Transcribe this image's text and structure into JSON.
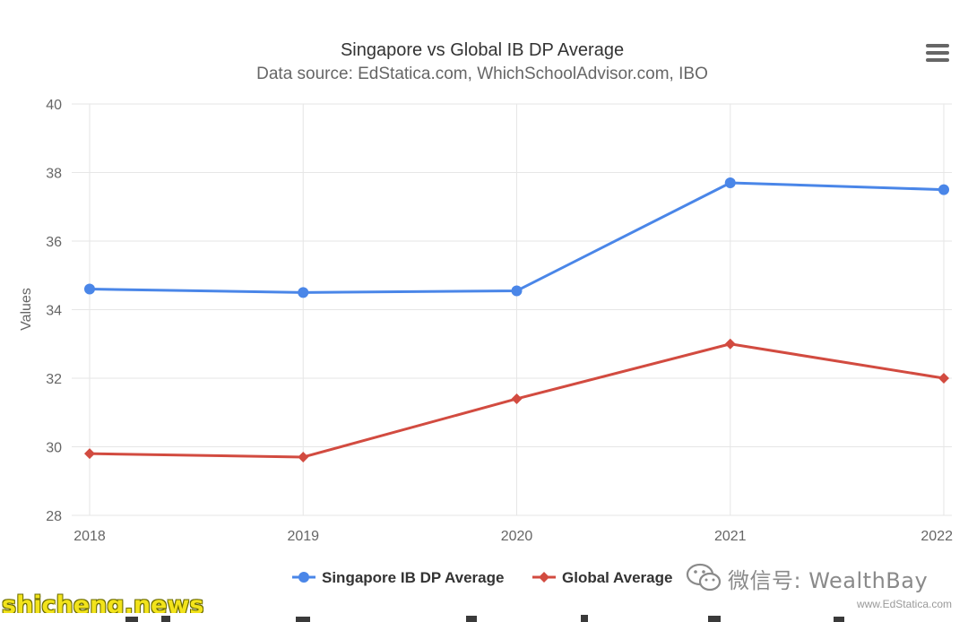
{
  "chart_data": {
    "type": "line",
    "title": "Singapore vs Global IB DP Average",
    "subtitle": "Data source: EdStatica.com, WhichSchoolAdvisor.com, IBO",
    "ylabel": "Values",
    "xlabel": "",
    "categories": [
      "2018",
      "2019",
      "2020",
      "2021",
      "2022"
    ],
    "y_ticks": [
      "28",
      "30",
      "32",
      "34",
      "36",
      "38",
      "40"
    ],
    "ylim": [
      28,
      40
    ],
    "grid": true,
    "legend_position": "bottom",
    "series": [
      {
        "name": "Singapore IB DP Average",
        "values": [
          34.6,
          34.5,
          34.55,
          37.7,
          37.5
        ],
        "color": "#4a86e8",
        "marker": "circle"
      },
      {
        "name": "Global Average",
        "values": [
          29.8,
          29.7,
          31.4,
          33.0,
          32.0
        ],
        "color": "#d24b40",
        "marker": "diamond"
      }
    ]
  },
  "credits": "www.EdStatica.com",
  "menu_icon": "hamburger-menu-icon",
  "watermarks": {
    "wechat": "微信号: WealthBay",
    "site": "shicheng.news"
  },
  "colors": {
    "grid": "#e6e6e6",
    "text": "#666666",
    "title": "#333333"
  }
}
